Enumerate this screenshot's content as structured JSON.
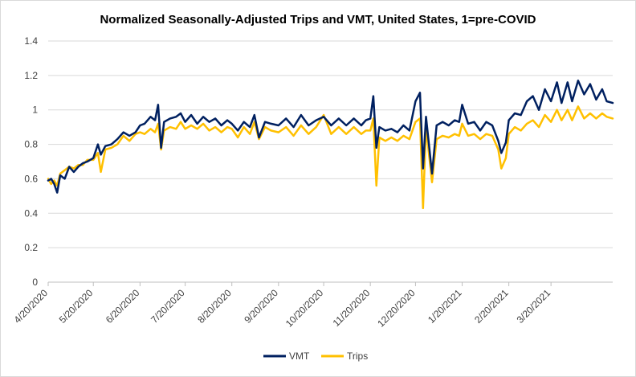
{
  "chart_data": {
    "type": "line",
    "title": "Normalized Seasonally-Adjusted Trips and VMT, United States, 1=pre-COVID",
    "xlabel": "",
    "ylabel": "",
    "x_range": [
      "2020-04-20",
      "2021-04-30"
    ],
    "ylim": [
      0,
      1.4
    ],
    "y_ticks": [
      "0",
      "0.2",
      "0.4",
      "0.6",
      "0.8",
      "1",
      "1.2",
      "1.4"
    ],
    "x_tick_dates": [
      "2020-04-20",
      "2020-05-20",
      "2020-06-20",
      "2020-07-20",
      "2020-08-20",
      "2020-09-20",
      "2020-10-20",
      "2020-11-20",
      "2020-12-20",
      "2021-01-20",
      "2021-02-20",
      "2021-03-20"
    ],
    "x_ticks": [
      "4/20/2020",
      "5/20/2020",
      "6/20/2020",
      "7/20/2020",
      "8/20/2020",
      "9/20/2020",
      "10/20/2020",
      "11/20/2020",
      "12/20/2020",
      "1/20/2021",
      "2/20/2021",
      "3/20/2021"
    ],
    "grid": "horizontal",
    "legend_position": "bottom",
    "series": [
      {
        "name": "VMT",
        "color": "#002060",
        "points": [
          [
            "2020-04-20",
            0.59
          ],
          [
            "2020-04-22",
            0.6
          ],
          [
            "2020-04-24",
            0.57
          ],
          [
            "2020-04-26",
            0.52
          ],
          [
            "2020-04-28",
            0.62
          ],
          [
            "2020-05-01",
            0.6
          ],
          [
            "2020-05-04",
            0.67
          ],
          [
            "2020-05-07",
            0.64
          ],
          [
            "2020-05-10",
            0.67
          ],
          [
            "2020-05-13",
            0.69
          ],
          [
            "2020-05-16",
            0.7
          ],
          [
            "2020-05-20",
            0.72
          ],
          [
            "2020-05-23",
            0.8
          ],
          [
            "2020-05-25",
            0.74
          ],
          [
            "2020-05-28",
            0.79
          ],
          [
            "2020-06-01",
            0.8
          ],
          [
            "2020-06-05",
            0.83
          ],
          [
            "2020-06-09",
            0.87
          ],
          [
            "2020-06-13",
            0.85
          ],
          [
            "2020-06-17",
            0.87
          ],
          [
            "2020-06-20",
            0.91
          ],
          [
            "2020-06-23",
            0.92
          ],
          [
            "2020-06-27",
            0.96
          ],
          [
            "2020-06-30",
            0.94
          ],
          [
            "2020-07-02",
            1.03
          ],
          [
            "2020-07-04",
            0.78
          ],
          [
            "2020-07-06",
            0.93
          ],
          [
            "2020-07-10",
            0.95
          ],
          [
            "2020-07-14",
            0.96
          ],
          [
            "2020-07-17",
            0.98
          ],
          [
            "2020-07-20",
            0.93
          ],
          [
            "2020-07-24",
            0.97
          ],
          [
            "2020-07-28",
            0.92
          ],
          [
            "2020-08-01",
            0.96
          ],
          [
            "2020-08-05",
            0.93
          ],
          [
            "2020-08-09",
            0.95
          ],
          [
            "2020-08-13",
            0.91
          ],
          [
            "2020-08-17",
            0.94
          ],
          [
            "2020-08-20",
            0.92
          ],
          [
            "2020-08-24",
            0.88
          ],
          [
            "2020-08-28",
            0.93
          ],
          [
            "2020-09-01",
            0.9
          ],
          [
            "2020-09-04",
            0.97
          ],
          [
            "2020-09-07",
            0.84
          ],
          [
            "2020-09-11",
            0.93
          ],
          [
            "2020-09-15",
            0.92
          ],
          [
            "2020-09-20",
            0.91
          ],
          [
            "2020-09-25",
            0.95
          ],
          [
            "2020-09-30",
            0.9
          ],
          [
            "2020-10-05",
            0.97
          ],
          [
            "2020-10-10",
            0.91
          ],
          [
            "2020-10-15",
            0.94
          ],
          [
            "2020-10-20",
            0.96
          ],
          [
            "2020-10-25",
            0.91
          ],
          [
            "2020-10-30",
            0.95
          ],
          [
            "2020-11-04",
            0.91
          ],
          [
            "2020-11-09",
            0.95
          ],
          [
            "2020-11-14",
            0.91
          ],
          [
            "2020-11-17",
            0.94
          ],
          [
            "2020-11-20",
            0.95
          ],
          [
            "2020-11-22",
            1.08
          ],
          [
            "2020-11-24",
            0.78
          ],
          [
            "2020-11-26",
            0.9
          ],
          [
            "2020-11-30",
            0.88
          ],
          [
            "2020-12-04",
            0.89
          ],
          [
            "2020-12-08",
            0.87
          ],
          [
            "2020-12-12",
            0.91
          ],
          [
            "2020-12-16",
            0.88
          ],
          [
            "2020-12-20",
            1.05
          ],
          [
            "2020-12-23",
            1.1
          ],
          [
            "2020-12-25",
            0.66
          ],
          [
            "2020-12-27",
            0.96
          ],
          [
            "2020-12-31",
            0.63
          ],
          [
            "2021-01-03",
            0.91
          ],
          [
            "2021-01-07",
            0.93
          ],
          [
            "2021-01-11",
            0.91
          ],
          [
            "2021-01-15",
            0.94
          ],
          [
            "2021-01-18",
            0.93
          ],
          [
            "2021-01-20",
            1.03
          ],
          [
            "2021-01-24",
            0.92
          ],
          [
            "2021-01-28",
            0.93
          ],
          [
            "2021-02-01",
            0.88
          ],
          [
            "2021-02-05",
            0.93
          ],
          [
            "2021-02-09",
            0.91
          ],
          [
            "2021-02-13",
            0.82
          ],
          [
            "2021-02-15",
            0.75
          ],
          [
            "2021-02-18",
            0.81
          ],
          [
            "2021-02-20",
            0.94
          ],
          [
            "2021-02-24",
            0.98
          ],
          [
            "2021-02-28",
            0.97
          ],
          [
            "2021-03-04",
            1.05
          ],
          [
            "2021-03-08",
            1.08
          ],
          [
            "2021-03-12",
            1.0
          ],
          [
            "2021-03-16",
            1.12
          ],
          [
            "2021-03-20",
            1.05
          ],
          [
            "2021-03-24",
            1.16
          ],
          [
            "2021-03-27",
            1.04
          ],
          [
            "2021-03-31",
            1.16
          ],
          [
            "2021-04-03",
            1.05
          ],
          [
            "2021-04-07",
            1.17
          ],
          [
            "2021-04-11",
            1.09
          ],
          [
            "2021-04-15",
            1.15
          ],
          [
            "2021-04-19",
            1.06
          ],
          [
            "2021-04-23",
            1.12
          ],
          [
            "2021-04-26",
            1.05
          ],
          [
            "2021-04-30",
            1.04
          ]
        ]
      },
      {
        "name": "Trips",
        "color": "#FFC000",
        "points": [
          [
            "2020-04-20",
            0.6
          ],
          [
            "2020-04-22",
            0.57
          ],
          [
            "2020-04-24",
            0.59
          ],
          [
            "2020-04-26",
            0.56
          ],
          [
            "2020-04-28",
            0.63
          ],
          [
            "2020-05-01",
            0.65
          ],
          [
            "2020-05-04",
            0.67
          ],
          [
            "2020-05-07",
            0.66
          ],
          [
            "2020-05-10",
            0.68
          ],
          [
            "2020-05-13",
            0.68
          ],
          [
            "2020-05-16",
            0.71
          ],
          [
            "2020-05-20",
            0.71
          ],
          [
            "2020-05-23",
            0.75
          ],
          [
            "2020-05-25",
            0.64
          ],
          [
            "2020-05-28",
            0.77
          ],
          [
            "2020-06-01",
            0.78
          ],
          [
            "2020-06-05",
            0.8
          ],
          [
            "2020-06-09",
            0.85
          ],
          [
            "2020-06-13",
            0.82
          ],
          [
            "2020-06-17",
            0.86
          ],
          [
            "2020-06-20",
            0.87
          ],
          [
            "2020-06-23",
            0.86
          ],
          [
            "2020-06-27",
            0.89
          ],
          [
            "2020-06-30",
            0.87
          ],
          [
            "2020-07-02",
            0.92
          ],
          [
            "2020-07-04",
            0.77
          ],
          [
            "2020-07-06",
            0.88
          ],
          [
            "2020-07-10",
            0.9
          ],
          [
            "2020-07-14",
            0.89
          ],
          [
            "2020-07-17",
            0.93
          ],
          [
            "2020-07-20",
            0.89
          ],
          [
            "2020-07-24",
            0.91
          ],
          [
            "2020-07-28",
            0.89
          ],
          [
            "2020-08-01",
            0.92
          ],
          [
            "2020-08-05",
            0.88
          ],
          [
            "2020-08-09",
            0.9
          ],
          [
            "2020-08-13",
            0.87
          ],
          [
            "2020-08-17",
            0.9
          ],
          [
            "2020-08-20",
            0.89
          ],
          [
            "2020-08-24",
            0.84
          ],
          [
            "2020-08-28",
            0.9
          ],
          [
            "2020-09-01",
            0.86
          ],
          [
            "2020-09-04",
            0.93
          ],
          [
            "2020-09-07",
            0.83
          ],
          [
            "2020-09-11",
            0.9
          ],
          [
            "2020-09-15",
            0.88
          ],
          [
            "2020-09-20",
            0.87
          ],
          [
            "2020-09-25",
            0.9
          ],
          [
            "2020-09-30",
            0.85
          ],
          [
            "2020-10-05",
            0.91
          ],
          [
            "2020-10-10",
            0.86
          ],
          [
            "2020-10-15",
            0.9
          ],
          [
            "2020-10-20",
            0.97
          ],
          [
            "2020-10-25",
            0.86
          ],
          [
            "2020-10-30",
            0.9
          ],
          [
            "2020-11-04",
            0.86
          ],
          [
            "2020-11-09",
            0.9
          ],
          [
            "2020-11-14",
            0.86
          ],
          [
            "2020-11-17",
            0.88
          ],
          [
            "2020-11-20",
            0.88
          ],
          [
            "2020-11-22",
            0.95
          ],
          [
            "2020-11-24",
            0.56
          ],
          [
            "2020-11-26",
            0.84
          ],
          [
            "2020-11-30",
            0.82
          ],
          [
            "2020-12-04",
            0.84
          ],
          [
            "2020-12-08",
            0.82
          ],
          [
            "2020-12-12",
            0.85
          ],
          [
            "2020-12-16",
            0.83
          ],
          [
            "2020-12-20",
            0.93
          ],
          [
            "2020-12-23",
            0.95
          ],
          [
            "2020-12-25",
            0.43
          ],
          [
            "2020-12-27",
            0.9
          ],
          [
            "2020-12-31",
            0.58
          ],
          [
            "2021-01-03",
            0.83
          ],
          [
            "2021-01-07",
            0.85
          ],
          [
            "2021-01-11",
            0.84
          ],
          [
            "2021-01-15",
            0.86
          ],
          [
            "2021-01-18",
            0.85
          ],
          [
            "2021-01-20",
            0.92
          ],
          [
            "2021-01-24",
            0.85
          ],
          [
            "2021-01-28",
            0.86
          ],
          [
            "2021-02-01",
            0.83
          ],
          [
            "2021-02-05",
            0.86
          ],
          [
            "2021-02-09",
            0.85
          ],
          [
            "2021-02-13",
            0.77
          ],
          [
            "2021-02-15",
            0.66
          ],
          [
            "2021-02-18",
            0.72
          ],
          [
            "2021-02-20",
            0.86
          ],
          [
            "2021-02-24",
            0.9
          ],
          [
            "2021-02-28",
            0.88
          ],
          [
            "2021-03-04",
            0.92
          ],
          [
            "2021-03-08",
            0.94
          ],
          [
            "2021-03-12",
            0.9
          ],
          [
            "2021-03-16",
            0.97
          ],
          [
            "2021-03-20",
            0.93
          ],
          [
            "2021-03-24",
            1.0
          ],
          [
            "2021-03-27",
            0.94
          ],
          [
            "2021-03-31",
            1.0
          ],
          [
            "2021-04-03",
            0.94
          ],
          [
            "2021-04-07",
            1.02
          ],
          [
            "2021-04-11",
            0.95
          ],
          [
            "2021-04-15",
            0.98
          ],
          [
            "2021-04-19",
            0.95
          ],
          [
            "2021-04-23",
            0.98
          ],
          [
            "2021-04-26",
            0.96
          ],
          [
            "2021-04-30",
            0.95
          ]
        ]
      }
    ]
  }
}
